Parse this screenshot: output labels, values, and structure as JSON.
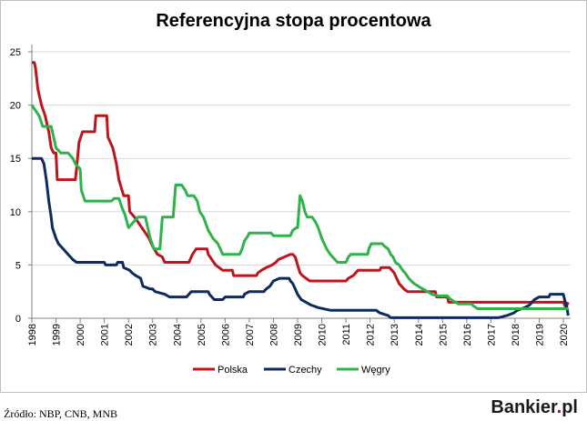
{
  "chart_data": {
    "type": "line",
    "title": "Referencyjna stopa procentowa",
    "xlabel": "",
    "ylabel": "",
    "xlim": [
      1998,
      2020.3
    ],
    "ylim": [
      0,
      25
    ],
    "y_ticks": [
      "0",
      "5",
      "10",
      "15",
      "20",
      "25"
    ],
    "x_ticks": [
      "1998",
      "1999",
      "2000",
      "2001",
      "2002",
      "2003",
      "2004",
      "2005",
      "2006",
      "2007",
      "2008",
      "2009",
      "2010",
      "2011",
      "2012",
      "2013",
      "2014",
      "2015",
      "2016",
      "2017",
      "2018",
      "2019",
      "2020"
    ],
    "grid": "horizontal",
    "legend_position": "bottom",
    "series": [
      {
        "name": "Polska",
        "color": "#c0141d",
        "points": [
          [
            1998.0,
            24
          ],
          [
            1998.1,
            24
          ],
          [
            1998.15,
            23.5
          ],
          [
            1998.25,
            21.5
          ],
          [
            1998.4,
            20
          ],
          [
            1998.55,
            19
          ],
          [
            1998.7,
            17.5
          ],
          [
            1998.8,
            16
          ],
          [
            1998.9,
            15.5
          ],
          [
            1999.0,
            15.5
          ],
          [
            1999.05,
            13
          ],
          [
            1999.8,
            13
          ],
          [
            1999.85,
            14
          ],
          [
            1999.95,
            16.5
          ],
          [
            2000.1,
            17.5
          ],
          [
            2000.6,
            17.5
          ],
          [
            2000.65,
            19
          ],
          [
            2001.1,
            19
          ],
          [
            2001.15,
            17
          ],
          [
            2001.35,
            16
          ],
          [
            2001.5,
            14.5
          ],
          [
            2001.6,
            13
          ],
          [
            2001.8,
            11.5
          ],
          [
            2002.0,
            11.5
          ],
          [
            2002.05,
            10
          ],
          [
            2002.25,
            9.5
          ],
          [
            2002.4,
            9
          ],
          [
            2002.55,
            8.5
          ],
          [
            2002.7,
            8
          ],
          [
            2002.85,
            7.5
          ],
          [
            2003.0,
            6.75
          ],
          [
            2003.2,
            6
          ],
          [
            2003.4,
            5.75
          ],
          [
            2003.5,
            5.25
          ],
          [
            2004.5,
            5.25
          ],
          [
            2004.55,
            5.5
          ],
          [
            2004.65,
            6
          ],
          [
            2004.8,
            6.5
          ],
          [
            2005.25,
            6.5
          ],
          [
            2005.3,
            6
          ],
          [
            2005.45,
            5.5
          ],
          [
            2005.6,
            5
          ],
          [
            2005.75,
            4.75
          ],
          [
            2005.9,
            4.5
          ],
          [
            2006.3,
            4.5
          ],
          [
            2006.35,
            4
          ],
          [
            2007.3,
            4
          ],
          [
            2007.35,
            4.25
          ],
          [
            2007.5,
            4.5
          ],
          [
            2007.7,
            4.75
          ],
          [
            2007.95,
            5
          ],
          [
            2008.1,
            5.25
          ],
          [
            2008.2,
            5.5
          ],
          [
            2008.45,
            5.75
          ],
          [
            2008.7,
            6
          ],
          [
            2008.8,
            6
          ],
          [
            2008.9,
            5.75
          ],
          [
            2009.0,
            5
          ],
          [
            2009.1,
            4.25
          ],
          [
            2009.2,
            4
          ],
          [
            2009.35,
            3.75
          ],
          [
            2009.5,
            3.5
          ],
          [
            2011.0,
            3.5
          ],
          [
            2011.1,
            3.75
          ],
          [
            2011.3,
            4
          ],
          [
            2011.4,
            4.25
          ],
          [
            2011.5,
            4.5
          ],
          [
            2012.4,
            4.5
          ],
          [
            2012.45,
            4.75
          ],
          [
            2012.8,
            4.75
          ],
          [
            2012.9,
            4.5
          ],
          [
            2013.0,
            4.25
          ],
          [
            2013.1,
            3.75
          ],
          [
            2013.2,
            3.25
          ],
          [
            2013.4,
            2.75
          ],
          [
            2013.55,
            2.5
          ],
          [
            2014.7,
            2.5
          ],
          [
            2014.75,
            2.0
          ],
          [
            2015.2,
            2.0
          ],
          [
            2015.25,
            1.5
          ],
          [
            2020.0,
            1.5
          ],
          [
            2020.1,
            1.0
          ],
          [
            2020.2,
            1.5
          ]
        ]
      },
      {
        "name": "Czechy",
        "color": "#0e2a5e",
        "points": [
          [
            1998.0,
            15
          ],
          [
            1998.4,
            15
          ],
          [
            1998.5,
            14.5
          ],
          [
            1998.6,
            13
          ],
          [
            1998.7,
            11
          ],
          [
            1998.8,
            9.5
          ],
          [
            1998.85,
            8.5
          ],
          [
            1999.0,
            7.5
          ],
          [
            1999.1,
            7
          ],
          [
            1999.3,
            6.5
          ],
          [
            1999.5,
            6
          ],
          [
            1999.7,
            5.5
          ],
          [
            1999.85,
            5.25
          ],
          [
            2001.0,
            5.25
          ],
          [
            2001.05,
            5
          ],
          [
            2001.5,
            5
          ],
          [
            2001.55,
            5.25
          ],
          [
            2001.75,
            5.25
          ],
          [
            2001.8,
            4.75
          ],
          [
            2002.05,
            4.5
          ],
          [
            2002.15,
            4.25
          ],
          [
            2002.3,
            4
          ],
          [
            2002.5,
            3.75
          ],
          [
            2002.6,
            3
          ],
          [
            2002.9,
            2.75
          ],
          [
            2003.0,
            2.75
          ],
          [
            2003.1,
            2.5
          ],
          [
            2003.5,
            2.25
          ],
          [
            2003.7,
            2
          ],
          [
            2004.4,
            2
          ],
          [
            2004.5,
            2.25
          ],
          [
            2004.6,
            2.5
          ],
          [
            2005.3,
            2.5
          ],
          [
            2005.35,
            2.25
          ],
          [
            2005.45,
            2
          ],
          [
            2005.55,
            1.75
          ],
          [
            2005.9,
            1.75
          ],
          [
            2006.0,
            2
          ],
          [
            2006.75,
            2
          ],
          [
            2006.8,
            2.25
          ],
          [
            2007.0,
            2.5
          ],
          [
            2007.6,
            2.5
          ],
          [
            2007.7,
            2.75
          ],
          [
            2007.85,
            3
          ],
          [
            2008.0,
            3.5
          ],
          [
            2008.25,
            3.75
          ],
          [
            2008.65,
            3.75
          ],
          [
            2008.7,
            3.5
          ],
          [
            2008.8,
            3.25
          ],
          [
            2008.9,
            2.75
          ],
          [
            2009.0,
            2.25
          ],
          [
            2009.15,
            1.75
          ],
          [
            2009.35,
            1.5
          ],
          [
            2009.55,
            1.25
          ],
          [
            2009.85,
            1.0
          ],
          [
            2010.35,
            0.75
          ],
          [
            2012.25,
            0.75
          ],
          [
            2012.4,
            0.5
          ],
          [
            2012.75,
            0.25
          ],
          [
            2012.85,
            0.05
          ],
          [
            2017.3,
            0.05
          ],
          [
            2017.65,
            0.25
          ],
          [
            2017.95,
            0.5
          ],
          [
            2018.1,
            0.75
          ],
          [
            2018.4,
            1
          ],
          [
            2018.6,
            1.25
          ],
          [
            2018.7,
            1.5
          ],
          [
            2018.8,
            1.75
          ],
          [
            2019.0,
            2
          ],
          [
            2019.4,
            2
          ],
          [
            2019.45,
            2.25
          ],
          [
            2020.0,
            2.25
          ],
          [
            2020.05,
            1.75
          ],
          [
            2020.15,
            1.0
          ],
          [
            2020.2,
            0.25
          ]
        ]
      },
      {
        "name": "Węgry",
        "color": "#2db34a",
        "points": [
          [
            1998.0,
            20
          ],
          [
            1998.15,
            19.5
          ],
          [
            1998.3,
            19
          ],
          [
            1998.45,
            18
          ],
          [
            1998.8,
            18
          ],
          [
            1998.9,
            17
          ],
          [
            1999.0,
            16
          ],
          [
            1999.2,
            15.5
          ],
          [
            1999.5,
            15.5
          ],
          [
            1999.7,
            15
          ],
          [
            1999.8,
            14.5
          ],
          [
            2000.0,
            14
          ],
          [
            2000.05,
            12
          ],
          [
            2000.2,
            11
          ],
          [
            2001.3,
            11
          ],
          [
            2001.4,
            11.25
          ],
          [
            2001.6,
            11.25
          ],
          [
            2001.75,
            10.25
          ],
          [
            2001.85,
            9.75
          ],
          [
            2002.0,
            8.5
          ],
          [
            2002.2,
            9
          ],
          [
            2002.4,
            9.5
          ],
          [
            2002.7,
            9.5
          ],
          [
            2002.8,
            8.5
          ],
          [
            2002.9,
            7.5
          ],
          [
            2003.05,
            6.5
          ],
          [
            2003.3,
            6.5
          ],
          [
            2003.4,
            9.5
          ],
          [
            2003.85,
            9.5
          ],
          [
            2003.95,
            12.5
          ],
          [
            2004.2,
            12.5
          ],
          [
            2004.35,
            12
          ],
          [
            2004.45,
            11.5
          ],
          [
            2004.7,
            11.5
          ],
          [
            2004.85,
            11
          ],
          [
            2004.95,
            10
          ],
          [
            2005.1,
            9.5
          ],
          [
            2005.3,
            8.25
          ],
          [
            2005.5,
            7.5
          ],
          [
            2005.7,
            7
          ],
          [
            2005.8,
            6.5
          ],
          [
            2005.9,
            6
          ],
          [
            2006.6,
            6
          ],
          [
            2006.7,
            6.5
          ],
          [
            2006.8,
            7.25
          ],
          [
            2006.95,
            7.75
          ],
          [
            2007.0,
            8
          ],
          [
            2007.9,
            8
          ],
          [
            2008.0,
            7.75
          ],
          [
            2008.7,
            7.75
          ],
          [
            2008.8,
            8.25
          ],
          [
            2008.95,
            8.5
          ],
          [
            2009.0,
            8.5
          ],
          [
            2009.1,
            11.5
          ],
          [
            2009.2,
            11
          ],
          [
            2009.3,
            10
          ],
          [
            2009.4,
            9.5
          ],
          [
            2009.6,
            9.5
          ],
          [
            2009.75,
            9
          ],
          [
            2009.85,
            8.5
          ],
          [
            2010.0,
            7.5
          ],
          [
            2010.2,
            6.5
          ],
          [
            2010.35,
            6
          ],
          [
            2010.45,
            5.75
          ],
          [
            2010.55,
            5.5
          ],
          [
            2010.65,
            5.25
          ],
          [
            2010.75,
            5.25
          ],
          [
            2011.0,
            5.25
          ],
          [
            2011.1,
            5.75
          ],
          [
            2011.2,
            6
          ],
          [
            2011.9,
            6
          ],
          [
            2011.95,
            6.5
          ],
          [
            2012.05,
            7
          ],
          [
            2012.5,
            7
          ],
          [
            2012.6,
            6.75
          ],
          [
            2012.75,
            6.5
          ],
          [
            2012.85,
            6
          ],
          [
            2012.95,
            5.75
          ],
          [
            2013.05,
            5.25
          ],
          [
            2013.2,
            5
          ],
          [
            2013.35,
            4.5
          ],
          [
            2013.45,
            4.25
          ],
          [
            2013.6,
            3.75
          ],
          [
            2013.75,
            3.4
          ],
          [
            2013.85,
            3.2
          ],
          [
            2014.0,
            3
          ],
          [
            2014.1,
            2.85
          ],
          [
            2014.3,
            2.6
          ],
          [
            2014.45,
            2.4
          ],
          [
            2014.6,
            2.2
          ],
          [
            2014.8,
            2.1
          ],
          [
            2015.2,
            2.1
          ],
          [
            2015.3,
            1.85
          ],
          [
            2015.45,
            1.6
          ],
          [
            2015.55,
            1.5
          ],
          [
            2015.65,
            1.35
          ],
          [
            2016.2,
            1.35
          ],
          [
            2016.25,
            1.2
          ],
          [
            2016.35,
            1.05
          ],
          [
            2016.45,
            0.9
          ],
          [
            2020.2,
            0.9
          ]
        ]
      }
    ]
  },
  "source_note": "Źródło: NBP, CNB, MNB",
  "brand": {
    "name": "Bankier",
    "dot": ".",
    "tld": "pl"
  }
}
